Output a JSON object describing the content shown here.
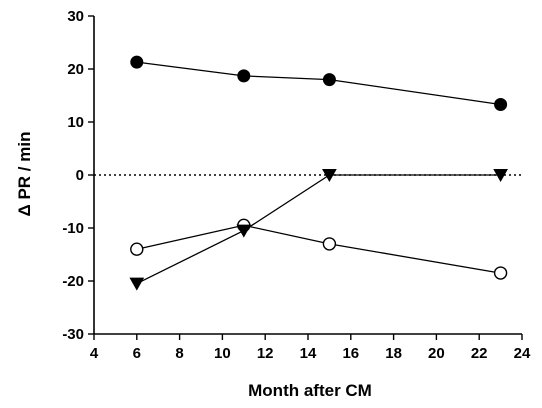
{
  "chart_data": {
    "type": "line",
    "title": "",
    "xlabel": "Month after CM",
    "ylabel": "Δ PR / min",
    "xlim": [
      4,
      24
    ],
    "ylim": [
      -30,
      30
    ],
    "xticks": [
      4,
      6,
      8,
      10,
      12,
      14,
      16,
      18,
      20,
      22,
      24
    ],
    "yticks": [
      -30,
      -20,
      -10,
      0,
      10,
      20,
      30
    ],
    "reference_line": {
      "y": 0,
      "style": "dotted"
    },
    "grid": false,
    "legend": "none",
    "series": [
      {
        "marker": "filled-circle",
        "x": [
          6,
          11,
          15,
          23
        ],
        "y": [
          21.3,
          18.7,
          18.0,
          13.3
        ]
      },
      {
        "marker": "open-circle",
        "x": [
          6,
          11,
          15,
          23
        ],
        "y": [
          -14.0,
          -9.5,
          -13.0,
          -18.5
        ]
      },
      {
        "marker": "filled-triangle-down",
        "x": [
          6,
          11,
          15,
          23
        ],
        "y": [
          -20.5,
          -10.5,
          0,
          0
        ]
      }
    ]
  }
}
